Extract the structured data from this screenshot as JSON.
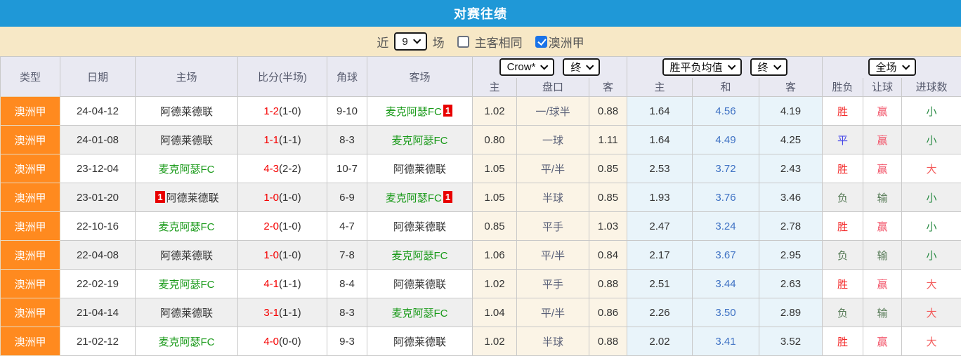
{
  "header": {
    "title": "对赛往绩"
  },
  "filter": {
    "near_label": "近",
    "recent_count": "9",
    "games_label": "场",
    "same_venue_label": "主客相同",
    "same_venue_checked": false,
    "league_label": "澳洲甲",
    "league_checked": true
  },
  "table": {
    "main_headers": [
      "类型",
      "日期",
      "主场",
      "比分(半场)",
      "角球",
      "客场"
    ],
    "sub_headers": [
      "主",
      "盘口",
      "客",
      "主",
      "和",
      "客",
      "胜负",
      "让球",
      "进球数"
    ],
    "dropdowns": {
      "odds_company": "Crow*",
      "odds_stage": "终",
      "avg_type": "胜平负均值",
      "avg_stage": "终",
      "scope": "全场"
    },
    "rows": [
      {
        "league": "澳洲甲",
        "date": "24-04-12",
        "home": {
          "name": "阿德莱德联",
          "green": false,
          "badge": "",
          "badge_side": ""
        },
        "score_full": "1-2",
        "score_half": "(1-0)",
        "corners": "9-10",
        "away": {
          "name": "麦克阿瑟FC",
          "green": true,
          "badge": "1",
          "badge_side": "right"
        },
        "odds": {
          "home": "1.02",
          "handicap": "一/球半",
          "away": "0.88"
        },
        "avg": {
          "home": "1.64",
          "draw": "4.56",
          "away": "4.19"
        },
        "results": {
          "outcome": "胜",
          "handicap": "赢",
          "goals": "小"
        }
      },
      {
        "league": "澳洲甲",
        "date": "24-01-08",
        "home": {
          "name": "阿德莱德联",
          "green": false,
          "badge": "",
          "badge_side": ""
        },
        "score_full": "1-1",
        "score_half": "(1-1)",
        "corners": "8-3",
        "away": {
          "name": "麦克阿瑟FC",
          "green": true,
          "badge": "",
          "badge_side": ""
        },
        "odds": {
          "home": "0.80",
          "handicap": "一球",
          "away": "1.11"
        },
        "avg": {
          "home": "1.64",
          "draw": "4.49",
          "away": "4.25"
        },
        "results": {
          "outcome": "平",
          "handicap": "赢",
          "goals": "小"
        }
      },
      {
        "league": "澳洲甲",
        "date": "23-12-04",
        "home": {
          "name": "麦克阿瑟FC",
          "green": true,
          "badge": "",
          "badge_side": ""
        },
        "score_full": "4-3",
        "score_half": "(2-2)",
        "corners": "10-7",
        "away": {
          "name": "阿德莱德联",
          "green": false,
          "badge": "",
          "badge_side": ""
        },
        "odds": {
          "home": "1.05",
          "handicap": "平/半",
          "away": "0.85"
        },
        "avg": {
          "home": "2.53",
          "draw": "3.72",
          "away": "2.43"
        },
        "results": {
          "outcome": "胜",
          "handicap": "赢",
          "goals": "大"
        }
      },
      {
        "league": "澳洲甲",
        "date": "23-01-20",
        "home": {
          "name": "阿德莱德联",
          "green": false,
          "badge": "1",
          "badge_side": "left"
        },
        "score_full": "1-0",
        "score_half": "(1-0)",
        "corners": "6-9",
        "away": {
          "name": "麦克阿瑟FC",
          "green": true,
          "badge": "1",
          "badge_side": "right"
        },
        "odds": {
          "home": "1.05",
          "handicap": "半球",
          "away": "0.85"
        },
        "avg": {
          "home": "1.93",
          "draw": "3.76",
          "away": "3.46"
        },
        "results": {
          "outcome": "负",
          "handicap": "输",
          "goals": "小"
        }
      },
      {
        "league": "澳洲甲",
        "date": "22-10-16",
        "home": {
          "name": "麦克阿瑟FC",
          "green": true,
          "badge": "",
          "badge_side": ""
        },
        "score_full": "2-0",
        "score_half": "(1-0)",
        "corners": "4-7",
        "away": {
          "name": "阿德莱德联",
          "green": false,
          "badge": "",
          "badge_side": ""
        },
        "odds": {
          "home": "0.85",
          "handicap": "平手",
          "away": "1.03"
        },
        "avg": {
          "home": "2.47",
          "draw": "3.24",
          "away": "2.78"
        },
        "results": {
          "outcome": "胜",
          "handicap": "赢",
          "goals": "小"
        }
      },
      {
        "league": "澳洲甲",
        "date": "22-04-08",
        "home": {
          "name": "阿德莱德联",
          "green": false,
          "badge": "",
          "badge_side": ""
        },
        "score_full": "1-0",
        "score_half": "(1-0)",
        "corners": "7-8",
        "away": {
          "name": "麦克阿瑟FC",
          "green": true,
          "badge": "",
          "badge_side": ""
        },
        "odds": {
          "home": "1.06",
          "handicap": "平/半",
          "away": "0.84"
        },
        "avg": {
          "home": "2.17",
          "draw": "3.67",
          "away": "2.95"
        },
        "results": {
          "outcome": "负",
          "handicap": "输",
          "goals": "小"
        }
      },
      {
        "league": "澳洲甲",
        "date": "22-02-19",
        "home": {
          "name": "麦克阿瑟FC",
          "green": true,
          "badge": "",
          "badge_side": ""
        },
        "score_full": "4-1",
        "score_half": "(1-1)",
        "corners": "8-4",
        "away": {
          "name": "阿德莱德联",
          "green": false,
          "badge": "",
          "badge_side": ""
        },
        "odds": {
          "home": "1.02",
          "handicap": "平手",
          "away": "0.88"
        },
        "avg": {
          "home": "2.51",
          "draw": "3.44",
          "away": "2.63"
        },
        "results": {
          "outcome": "胜",
          "handicap": "赢",
          "goals": "大"
        }
      },
      {
        "league": "澳洲甲",
        "date": "21-04-14",
        "home": {
          "name": "阿德莱德联",
          "green": false,
          "badge": "",
          "badge_side": ""
        },
        "score_full": "3-1",
        "score_half": "(1-1)",
        "corners": "8-3",
        "away": {
          "name": "麦克阿瑟FC",
          "green": true,
          "badge": "",
          "badge_side": ""
        },
        "odds": {
          "home": "1.04",
          "handicap": "平/半",
          "away": "0.86"
        },
        "avg": {
          "home": "2.26",
          "draw": "3.50",
          "away": "2.89"
        },
        "results": {
          "outcome": "负",
          "handicap": "输",
          "goals": "大"
        }
      },
      {
        "league": "澳洲甲",
        "date": "21-02-12",
        "home": {
          "name": "麦克阿瑟FC",
          "green": true,
          "badge": "",
          "badge_side": ""
        },
        "score_full": "4-0",
        "score_half": "(0-0)",
        "corners": "9-3",
        "away": {
          "name": "阿德莱德联",
          "green": false,
          "badge": "",
          "badge_side": ""
        },
        "odds": {
          "home": "1.02",
          "handicap": "半球",
          "away": "0.88"
        },
        "avg": {
          "home": "2.02",
          "draw": "3.41",
          "away": "3.52"
        },
        "results": {
          "outcome": "胜",
          "handicap": "赢",
          "goals": "大"
        }
      }
    ]
  },
  "colors": {
    "titlebar_blue": "#1f98d7",
    "filter_cream": "#f7e8c6",
    "league_orange": "#ff8a1f",
    "row_alt_gray": "#efefef",
    "odds_cream": "#fbf4e6",
    "avg_blue_bg": "#e9f4fa",
    "team_green": "#179917",
    "score_red": "#f50000",
    "win_red": "#f32b2b",
    "draw_blue": "#4343e8",
    "lose_green": "#567a56",
    "goals_big_red": "#f35b5b",
    "goals_small_green": "#2c8c46",
    "badge_red": "#e80000",
    "avg_draw_blue": "#3f72c4"
  }
}
